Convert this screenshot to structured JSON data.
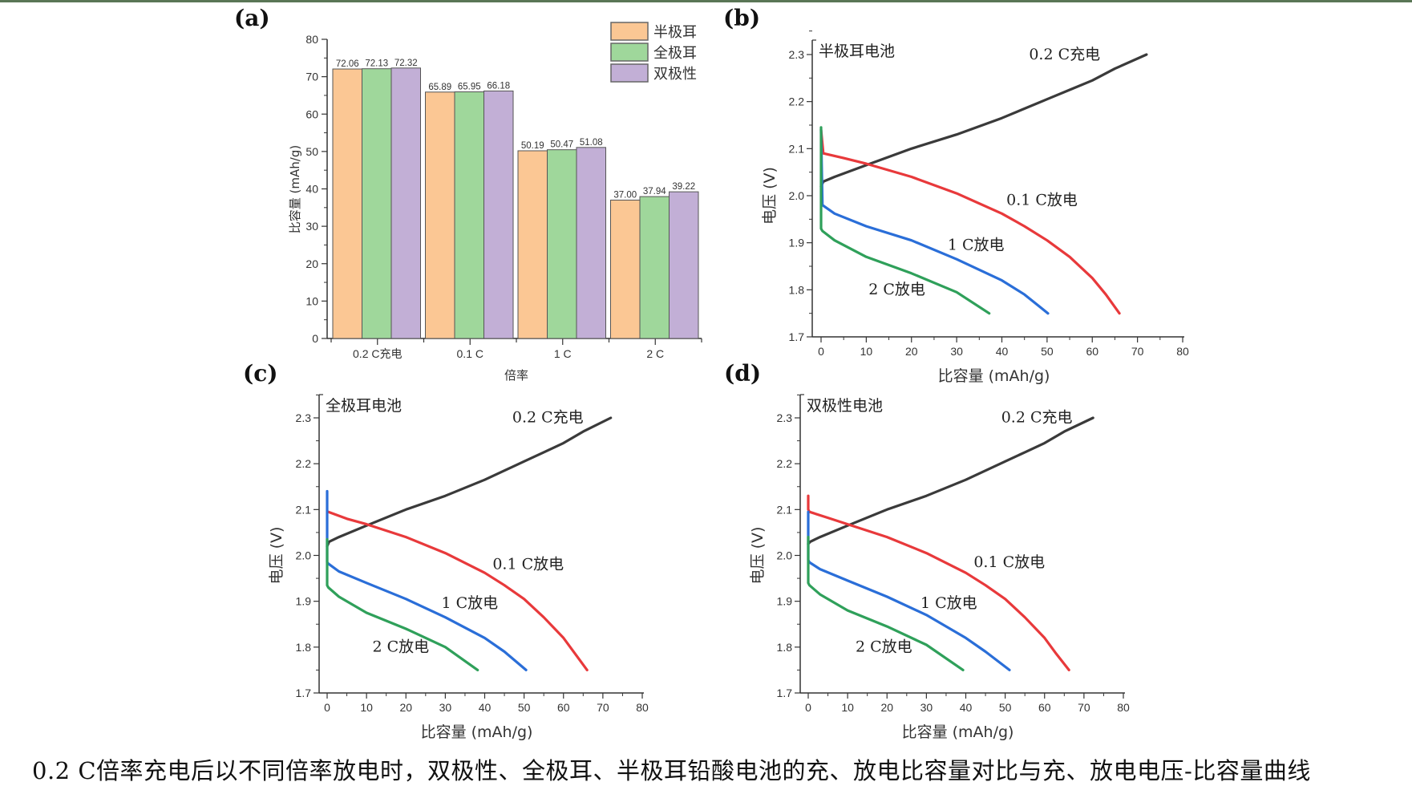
{
  "caption": "0.2 C倍率充电后以不同倍率放电时，双极性、全极耳、半极耳铅酸电池的充、放电比容量对比与充、放电电压-比容量曲线",
  "colors": {
    "half_tab": "#fbc794",
    "full_tab": "#9fd79b",
    "bipolar": "#c2afd6",
    "charge_0_2C": "#3a3a3a",
    "discharge_0_1C": "#e8393b",
    "discharge_1C": "#2a6ed8",
    "discharge_2C": "#2fa05a",
    "bar_edge": "#555555",
    "topbar": "#5a7656"
  },
  "chart_data": [
    {
      "panel": "(a)",
      "type": "bar",
      "title": "",
      "xlabel": "倍率",
      "ylabel": "比容量 (mAh/g)",
      "ylim": [
        0,
        80
      ],
      "yticks": [
        0,
        10,
        20,
        30,
        40,
        50,
        60,
        70,
        80
      ],
      "categories": [
        "0.2 C充电",
        "0.1 C",
        "1 C",
        "2 C"
      ],
      "legend_position": "top-right",
      "series": [
        {
          "name": "半极耳",
          "color_key": "half_tab",
          "values": [
            72.06,
            65.89,
            50.19,
            37.0
          ],
          "labels": [
            "72.06",
            "65.89",
            "50.19",
            "37.00"
          ]
        },
        {
          "name": "全极耳",
          "color_key": "full_tab",
          "values": [
            72.13,
            65.95,
            50.47,
            37.94
          ],
          "labels": [
            "72.13",
            "65.95",
            "50.47",
            "37.94"
          ]
        },
        {
          "name": "双极性",
          "color_key": "bipolar",
          "values": [
            72.32,
            66.18,
            51.08,
            39.22
          ],
          "labels": [
            "72.32",
            "66.18",
            "51.08",
            "39.22"
          ]
        }
      ]
    },
    {
      "panel": "(b)",
      "type": "line",
      "title": "半极耳电池",
      "xlabel": "比容量 (mAh/g)",
      "ylabel": "电压 (V)",
      "xlim": [
        -2,
        80
      ],
      "ylim": [
        1.7,
        2.35
      ],
      "xticks": [
        0,
        10,
        20,
        30,
        40,
        50,
        60,
        70,
        80
      ],
      "yticks": [
        1.7,
        1.8,
        1.9,
        2.0,
        2.1,
        2.2,
        2.3
      ],
      "series": [
        {
          "name": "0.2 C充电",
          "color_key": "charge_0_2C",
          "x": [
            0,
            0.5,
            3,
            10,
            20,
            30,
            40,
            50,
            55,
            60,
            65,
            72
          ],
          "y": [
            2.02,
            2.03,
            2.04,
            2.065,
            2.1,
            2.13,
            2.165,
            2.205,
            2.225,
            2.245,
            2.27,
            2.3
          ]
        },
        {
          "name": "0.1 C放电",
          "color_key": "discharge_0_1C",
          "x": [
            0,
            0.5,
            5,
            10,
            20,
            30,
            40,
            45,
            50,
            55,
            60,
            63,
            66
          ],
          "y": [
            2.14,
            2.09,
            2.08,
            2.068,
            2.04,
            2.005,
            1.962,
            1.935,
            1.905,
            1.87,
            1.825,
            1.79,
            1.75
          ]
        },
        {
          "name": "1 C放电",
          "color_key": "discharge_1C",
          "x": [
            0,
            0.3,
            3,
            10,
            20,
            30,
            40,
            45,
            50.2
          ],
          "y": [
            2.14,
            1.98,
            1.962,
            1.935,
            1.905,
            1.865,
            1.82,
            1.79,
            1.75
          ]
        },
        {
          "name": "2 C放电",
          "color_key": "discharge_2C",
          "x": [
            0,
            0,
            0.3,
            3,
            10,
            20,
            30,
            37.2
          ],
          "y": [
            2.145,
            1.93,
            1.925,
            1.905,
            1.87,
            1.835,
            1.795,
            1.75
          ]
        }
      ],
      "annotations": [
        {
          "text": "0.2 C充电",
          "x": 46,
          "y": 2.29
        },
        {
          "text": "0.1 C放电",
          "x": 41,
          "y": 1.98
        },
        {
          "text": "1 C放电",
          "x": 28,
          "y": 1.885
        },
        {
          "text": "2 C放电",
          "x": 10.5,
          "y": 1.79
        }
      ]
    },
    {
      "panel": "(c)",
      "type": "line",
      "title": "全极耳电池",
      "xlabel": "比容量 (mAh/g)",
      "ylabel": "电压 (V)",
      "xlim": [
        -2,
        80
      ],
      "ylim": [
        1.7,
        2.35
      ],
      "xticks": [
        0,
        10,
        20,
        30,
        40,
        50,
        60,
        70,
        80
      ],
      "yticks": [
        1.7,
        1.8,
        1.9,
        2.0,
        2.1,
        2.2,
        2.3
      ],
      "series": [
        {
          "name": "0.2 C充电",
          "color_key": "charge_0_2C",
          "x": [
            0,
            0.5,
            3,
            10,
            20,
            30,
            40,
            50,
            55,
            60,
            65,
            72
          ],
          "y": [
            2.02,
            2.03,
            2.04,
            2.065,
            2.1,
            2.13,
            2.165,
            2.205,
            2.225,
            2.245,
            2.27,
            2.3
          ]
        },
        {
          "name": "0.1 C放电",
          "color_key": "discharge_0_1C",
          "x": [
            0.3,
            5,
            10,
            20,
            30,
            40,
            45,
            50,
            55,
            60,
            63,
            66
          ],
          "y": [
            2.095,
            2.08,
            2.068,
            2.04,
            2.005,
            1.962,
            1.935,
            1.905,
            1.865,
            1.82,
            1.785,
            1.75
          ]
        },
        {
          "name": "1 C放电",
          "color_key": "discharge_1C",
          "x": [
            0,
            0,
            0.3,
            3,
            10,
            20,
            30,
            40,
            45,
            50.5
          ],
          "y": [
            2.14,
            1.985,
            1.982,
            1.965,
            1.94,
            1.905,
            1.865,
            1.82,
            1.79,
            1.75
          ]
        },
        {
          "name": "2 C放电",
          "color_key": "discharge_2C",
          "x": [
            0,
            0,
            0.3,
            3,
            10,
            20,
            30,
            38.2
          ],
          "y": [
            2.035,
            1.935,
            1.93,
            1.91,
            1.875,
            1.84,
            1.8,
            1.75
          ]
        }
      ],
      "annotations": [
        {
          "text": "0.2 C充电",
          "x": 47,
          "y": 2.29
        },
        {
          "text": "0.1 C放电",
          "x": 42,
          "y": 1.97
        },
        {
          "text": "1 C放电",
          "x": 29,
          "y": 1.885
        },
        {
          "text": "2 C放电",
          "x": 11.5,
          "y": 1.79
        }
      ]
    },
    {
      "panel": "(d)",
      "type": "line",
      "title": "双极性电池",
      "xlabel": "比容量 (mAh/g)",
      "ylabel": "电压 (V)",
      "xlim": [
        -2,
        80
      ],
      "ylim": [
        1.7,
        2.35
      ],
      "xticks": [
        0,
        10,
        20,
        30,
        40,
        50,
        60,
        70,
        80
      ],
      "yticks": [
        1.7,
        1.8,
        1.9,
        2.0,
        2.1,
        2.2,
        2.3
      ],
      "series": [
        {
          "name": "0.2 C充电",
          "color_key": "charge_0_2C",
          "x": [
            0,
            0.5,
            3,
            10,
            20,
            30,
            40,
            50,
            55,
            60,
            65,
            72.3
          ],
          "y": [
            2.025,
            2.03,
            2.04,
            2.065,
            2.1,
            2.13,
            2.165,
            2.205,
            2.225,
            2.245,
            2.27,
            2.3
          ]
        },
        {
          "name": "0.1 C放电",
          "color_key": "discharge_0_1C",
          "x": [
            0,
            0,
            0.3,
            5,
            10,
            20,
            30,
            40,
            45,
            50,
            55,
            60,
            63,
            66.2
          ],
          "y": [
            2.13,
            2.1,
            2.095,
            2.082,
            2.068,
            2.04,
            2.005,
            1.962,
            1.935,
            1.905,
            1.865,
            1.82,
            1.785,
            1.75
          ]
        },
        {
          "name": "1 C放电",
          "color_key": "discharge_1C",
          "x": [
            0,
            0,
            0.3,
            3,
            10,
            20,
            30,
            40,
            45,
            51.1
          ],
          "y": [
            2.095,
            1.99,
            1.985,
            1.97,
            1.945,
            1.91,
            1.87,
            1.82,
            1.79,
            1.75
          ]
        },
        {
          "name": "2 C放电",
          "color_key": "discharge_2C",
          "x": [
            0,
            0,
            0.3,
            3,
            10,
            20,
            30,
            39.3
          ],
          "y": [
            2.04,
            1.94,
            1.935,
            1.915,
            1.88,
            1.845,
            1.805,
            1.75
          ]
        }
      ],
      "annotations": [
        {
          "text": "0.2 C充电",
          "x": 49,
          "y": 2.29
        },
        {
          "text": "0.1 C放电",
          "x": 42,
          "y": 1.975
        },
        {
          "text": "1 C放电",
          "x": 28.5,
          "y": 1.885
        },
        {
          "text": "2 C放电",
          "x": 12,
          "y": 1.79
        }
      ]
    }
  ]
}
